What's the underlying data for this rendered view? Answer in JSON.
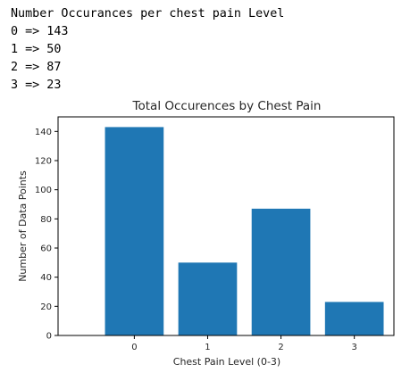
{
  "output": {
    "lines": [
      "Number Occurances per chest pain Level",
      "0 => 143",
      "1 => 50",
      "2 => 87",
      "3 => 23"
    ]
  },
  "chart_data": {
    "type": "bar",
    "title": "Total Occurences by Chest Pain",
    "xlabel": "Chest Pain Level (0-3)",
    "ylabel": "Number of Data Points",
    "categories": [
      "0",
      "1",
      "2",
      "3"
    ],
    "values": [
      143,
      50,
      87,
      23
    ],
    "ylim": [
      0,
      150
    ],
    "yticks": [
      0,
      20,
      40,
      60,
      80,
      100,
      120,
      140
    ],
    "bar_color": "#1f77b4",
    "grid": false,
    "legend": "none"
  }
}
